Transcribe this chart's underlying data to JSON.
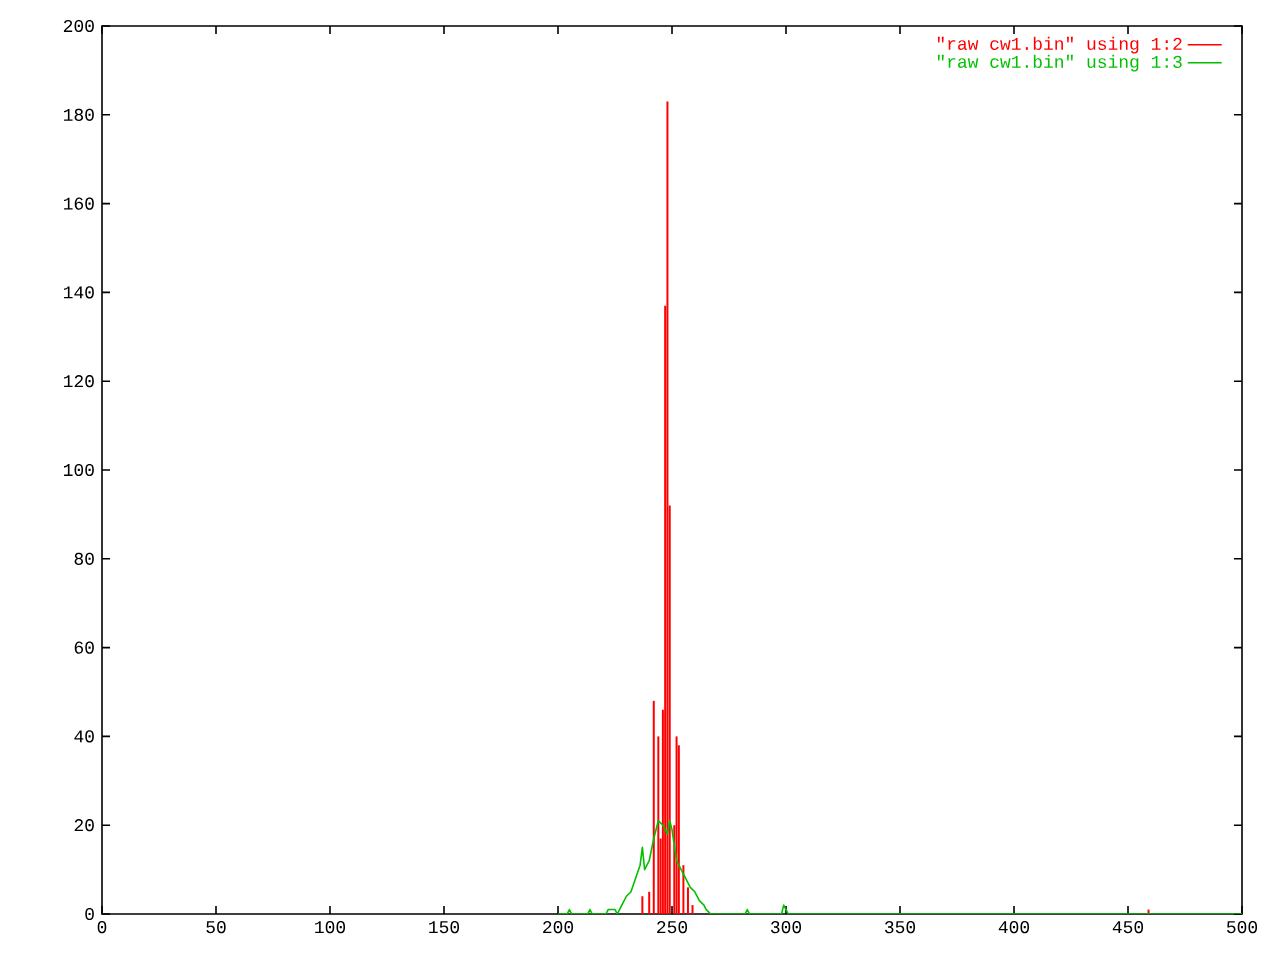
{
  "chart_data": {
    "type": "bar",
    "xlim": [
      0,
      500
    ],
    "ylim": [
      0,
      200
    ],
    "xticks": [
      0,
      50,
      100,
      150,
      200,
      250,
      300,
      350,
      400,
      450,
      500
    ],
    "yticks": [
      0,
      20,
      40,
      60,
      80,
      100,
      120,
      140,
      160,
      180,
      200
    ],
    "grid": false,
    "legend": "top right",
    "marker": "none",
    "series": [
      {
        "name": "\"raw cw1.bin\" using 1:2",
        "color": "#ff0000",
        "x": [
          237,
          240,
          242,
          244,
          245,
          246,
          247,
          248,
          249,
          251,
          252,
          253,
          255,
          257,
          259,
          459
        ],
        "values": [
          4,
          5,
          48,
          40,
          17,
          46,
          137,
          183,
          92,
          20,
          40,
          38,
          11,
          6,
          2,
          1
        ]
      },
      {
        "name": "\"raw cw1.bin\" using 1:3",
        "type": "line",
        "color": "#00c000",
        "x": [
          200,
          204,
          205,
          206,
          213,
          214,
          215,
          221,
          222,
          225,
          226,
          228,
          230,
          232,
          234,
          236,
          237,
          238,
          240,
          242,
          244,
          246,
          248,
          249,
          250,
          252,
          254,
          255,
          256,
          258,
          260,
          262,
          264,
          265,
          267,
          270,
          282,
          283,
          284,
          298,
          299,
          300,
          301,
          500
        ],
        "values": [
          0,
          0,
          1,
          0,
          0,
          1,
          0,
          0,
          1,
          1,
          0,
          2,
          4,
          5,
          8,
          11,
          15,
          10,
          12,
          17,
          21,
          20,
          18,
          21,
          19,
          12,
          10,
          9,
          8,
          6,
          5,
          3,
          2,
          1,
          0,
          0,
          0,
          1,
          0,
          0,
          2,
          1,
          0,
          0
        ]
      }
    ]
  }
}
